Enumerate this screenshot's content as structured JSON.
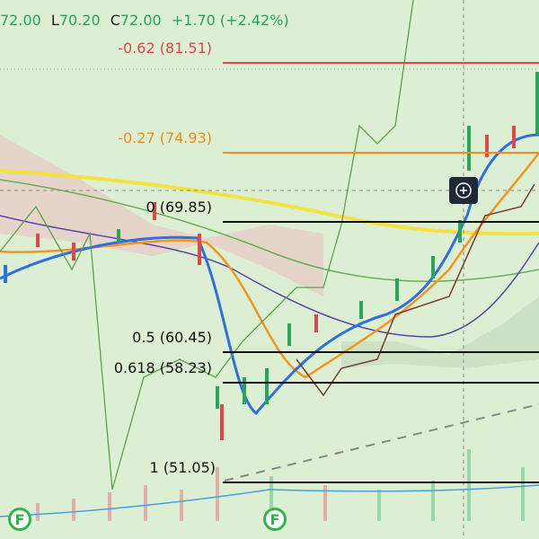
{
  "header": {
    "open": "72.00",
    "low_prefix": "L",
    "low": "70.20",
    "close_prefix": "C",
    "close": "72.00",
    "change": "+1.70 (+2.42%)"
  },
  "fib_levels": [
    {
      "label": "-0.62 (81.51)",
      "color": "#e0474c"
    },
    {
      "label": "-0.27 (74.93)",
      "color": "#f28a1e"
    },
    {
      "label": "0 (69.85)",
      "color": "#111111"
    },
    {
      "label": "0.5 (60.45)",
      "color": "#111111"
    },
    {
      "label": "0.618 (58.23)",
      "color": "#111111"
    },
    {
      "label": "1 (51.05)",
      "color": "#111111"
    }
  ],
  "markers": [
    "F",
    "F"
  ]
}
